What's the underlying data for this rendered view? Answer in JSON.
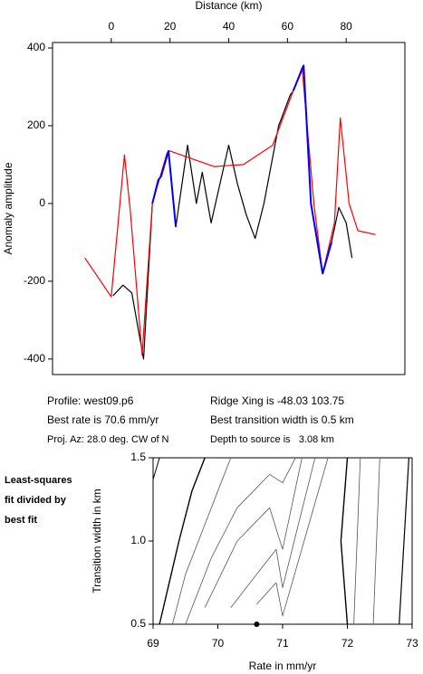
{
  "chart_data": [
    {
      "type": "line",
      "xaxis": "top",
      "xlabel": "Distance (km)",
      "ylabel": "Anomaly amplitude",
      "xlim": [
        -20,
        100
      ],
      "ylim": [
        -440,
        414
      ],
      "xticks": [
        0,
        20,
        40,
        60,
        80
      ],
      "yticks": [
        -400,
        -200,
        0,
        200,
        400
      ],
      "series": [
        {
          "color": "#000000",
          "line_width": 1.2,
          "x": [
            0.6,
            4,
            7,
            11,
            14,
            16,
            17,
            19.5,
            22,
            26,
            29,
            31,
            34,
            40,
            43,
            46,
            49,
            52,
            57,
            61,
            62,
            65.5,
            68,
            72,
            75,
            77.5,
            80,
            82
          ],
          "values": [
            -237,
            -210,
            -230,
            -400,
            0,
            60,
            70,
            135,
            -60,
            150,
            0,
            80,
            -50,
            150,
            50,
            -30,
            -90,
            0,
            200,
            280,
            290,
            355,
            0,
            -180,
            -100,
            -10,
            -50,
            -140
          ]
        },
        {
          "color": "#ff0000",
          "line_width": 1.2,
          "x": [
            -9,
            0,
            4.5,
            6.5,
            10.5,
            14,
            19,
            20,
            35,
            45,
            55,
            60,
            65,
            69,
            72,
            76,
            78,
            81,
            84,
            90
          ],
          "values": [
            -140,
            -240,
            125,
            -20,
            -390,
            0,
            130,
            135,
            95,
            100,
            150,
            250,
            350,
            0,
            -180,
            -50,
            220,
            0,
            -70,
            -80
          ]
        },
        {
          "color": "#0000ff",
          "line_width": 2,
          "x": [
            14,
            16,
            17,
            19.5,
            22,
            null,
            62,
            65.5,
            68,
            72,
            75
          ],
          "values": [
            0,
            60,
            70,
            135,
            -60,
            null,
            290,
            355,
            0,
            -180,
            -100
          ]
        }
      ]
    },
    {
      "type": "contour",
      "xaxis": "bottom",
      "xlabel": "Rate in mm/yr",
      "ylabel": "Transition width in km",
      "xlim": [
        69,
        73
      ],
      "ylim": [
        0.5,
        1.5
      ],
      "xticks": [
        69,
        70,
        71,
        72,
        73
      ],
      "yticks": [
        0.5,
        {
          "value": 1,
          "label": "1.0"
        },
        1.5
      ],
      "series": [
        {
          "color": "#000000",
          "line_width": 1,
          "x": [
            69.0,
            69.1
          ],
          "values": [
            1.37,
            1.5
          ]
        },
        {
          "color": "#000000",
          "line_width": 1.4,
          "x": [
            69.1,
            69.4,
            69.6,
            69.8
          ],
          "values": [
            0.5,
            1.0,
            1.3,
            1.5
          ]
        },
        {
          "color": "#555555",
          "line_width": 0.8,
          "x": [
            69.3,
            69.5,
            69.8,
            70.0,
            70.2
          ],
          "values": [
            0.5,
            0.8,
            1.1,
            1.3,
            1.5
          ]
        },
        {
          "color": "#555555",
          "line_width": 0.8,
          "x": [
            69.5,
            69.9,
            70.3,
            70.8,
            71.0,
            71.2
          ],
          "values": [
            0.5,
            0.9,
            1.2,
            1.4,
            1.35,
            1.5
          ]
        },
        {
          "color": "#555555",
          "line_width": 0.8,
          "x": [
            69.8,
            70.3,
            70.8,
            71.0,
            71.3
          ],
          "values": [
            0.6,
            1.0,
            1.2,
            0.95,
            1.5
          ]
        },
        {
          "color": "#555555",
          "line_width": 0.8,
          "x": [
            70.2,
            70.6,
            70.9,
            71.0,
            71.5
          ],
          "values": [
            0.6,
            0.8,
            0.95,
            0.72,
            1.5
          ]
        },
        {
          "color": "#555555",
          "line_width": 0.8,
          "x": [
            70.6,
            70.9,
            71.0,
            71.7
          ],
          "values": [
            0.62,
            0.75,
            0.55,
            1.5
          ]
        },
        {
          "color": "#000000",
          "line_width": 1.4,
          "x": [
            72.0,
            71.9,
            72.0
          ],
          "values": [
            1.5,
            1.0,
            0.5
          ]
        },
        {
          "color": "#555555",
          "line_width": 0.8,
          "x": [
            72.2,
            72.1
          ],
          "values": [
            1.5,
            0.5
          ]
        },
        {
          "color": "#555555",
          "line_width": 0.8,
          "x": [
            72.5,
            72.4
          ],
          "values": [
            1.5,
            0.5
          ]
        },
        {
          "color": "#000000",
          "line_width": 1.2,
          "x": [
            72.95,
            72.8
          ],
          "values": [
            1.5,
            0.5
          ]
        },
        {
          "color": "#000000",
          "marker": true,
          "x": [
            70.6
          ],
          "values": [
            0.5
          ]
        }
      ]
    }
  ],
  "info": {
    "left": [
      "Profile: west09.p6",
      "Best rate is 70.6 mm/yr",
      "Proj. Az: 28.0 deg. CW of N"
    ],
    "right": [
      "Ridge Xing is -48.03 103.75",
      "Best transition width is 0.5 km",
      "Depth to source is   3.08 km"
    ]
  },
  "note": [
    "Least-squares",
    "fit divided by",
    "best fit"
  ]
}
